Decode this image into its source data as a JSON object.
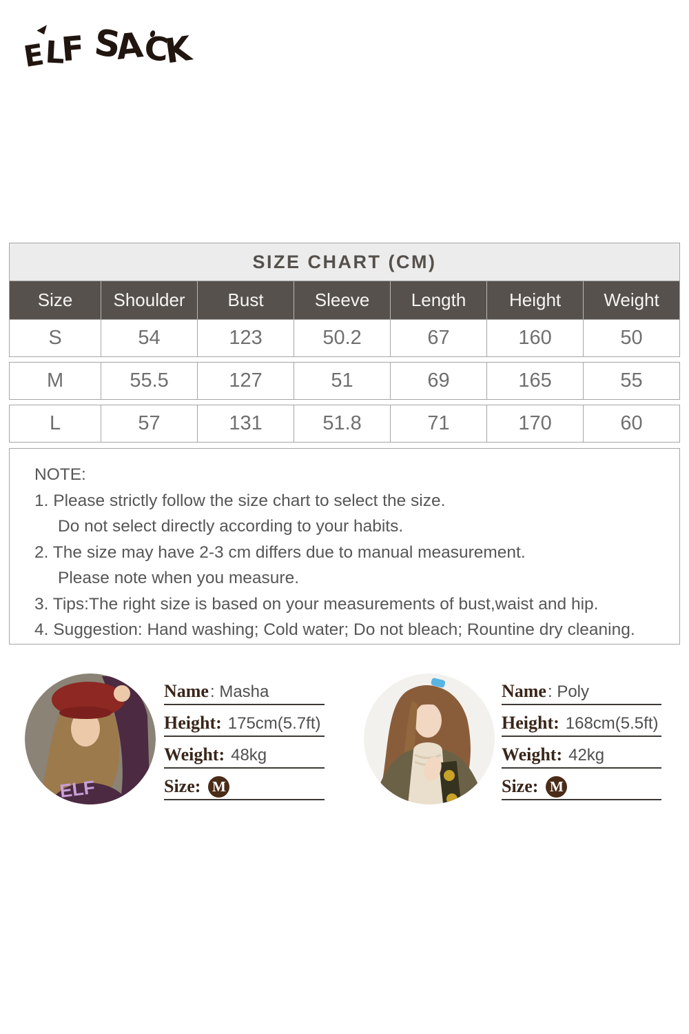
{
  "brand": {
    "logo_text": "ELF SACK"
  },
  "size_chart": {
    "title": "SIZE CHART (CM)",
    "columns": [
      "Size",
      "Shoulder",
      "Bust",
      "Sleeve",
      "Length",
      "Height",
      "Weight"
    ],
    "rows": [
      [
        "S",
        "54",
        "123",
        "50.2",
        "67",
        "160",
        "50"
      ],
      [
        "M",
        "55.5",
        "127",
        "51",
        "69",
        "165",
        "55"
      ],
      [
        "L",
        "57",
        "131",
        "51.8",
        "71",
        "170",
        "60"
      ]
    ]
  },
  "note": {
    "lines": [
      "NOTE:",
      "1. Please strictly follow the size chart to select the size.",
      "Do not select directly according to your habits.",
      "2. The size may have 2-3 cm differs due to manual measurement.",
      "Please note when you measure.",
      "3. Tips:The right size is based on your measurements of bust,waist and hip.",
      "4. Suggestion: Hand washing; Cold water; Do not bleach; Rountine dry cleaning."
    ]
  },
  "models": [
    {
      "name_label": "Name",
      "name_value": ": Masha",
      "height_label": "Height:",
      "height_value": "175cm(5.7ft)",
      "weight_label": "Weight:",
      "weight_value": "48kg",
      "size_label": "Size:",
      "size_badge": "M",
      "photo_print": "ELF"
    },
    {
      "name_label": "Name",
      "name_value": ": Poly",
      "height_label": "Height:",
      "height_value": "168cm(5.5ft)",
      "weight_label": "Weight:",
      "weight_value": "42kg",
      "size_label": "Size:",
      "size_badge": "M"
    }
  ],
  "colors": {
    "header_bg": "#56514c",
    "title_bg": "#ececec",
    "table_border": "#a5a5a5",
    "label_brown": "#3a261a",
    "badge_brown": "#4a2c18",
    "logo_ink": "#211510"
  }
}
